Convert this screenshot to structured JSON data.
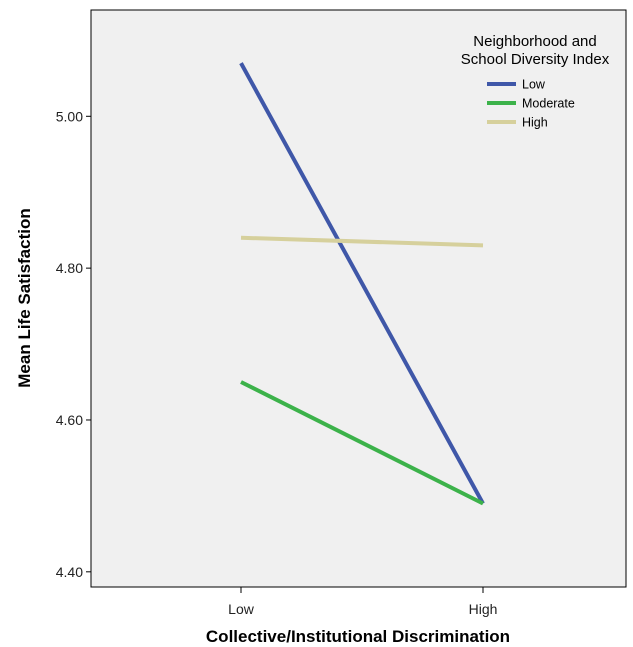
{
  "chart_data": {
    "type": "line",
    "xlabel": "Collective/Institutional Discrimination",
    "ylabel": "Mean Life Satisfaction",
    "categories": [
      "Low",
      "High"
    ],
    "ylim": [
      4.38,
      5.14
    ],
    "yticks": [
      "4.40",
      "4.60",
      "4.80",
      "5.00"
    ],
    "legend": {
      "title_line1": "Neighborhood and",
      "title_line2": "School Diversity Index",
      "placement": "top-right"
    },
    "series": [
      {
        "name": "Low",
        "values": [
          5.07,
          4.49
        ],
        "color": "#3f57a8"
      },
      {
        "name": "Moderate",
        "values": [
          4.65,
          4.49
        ],
        "color": "#3cb24a"
      },
      {
        "name": "High",
        "values": [
          4.84,
          4.83
        ],
        "color": "#d6d09c"
      }
    ],
    "plot_background": "#f0f0f0",
    "grid": false
  }
}
